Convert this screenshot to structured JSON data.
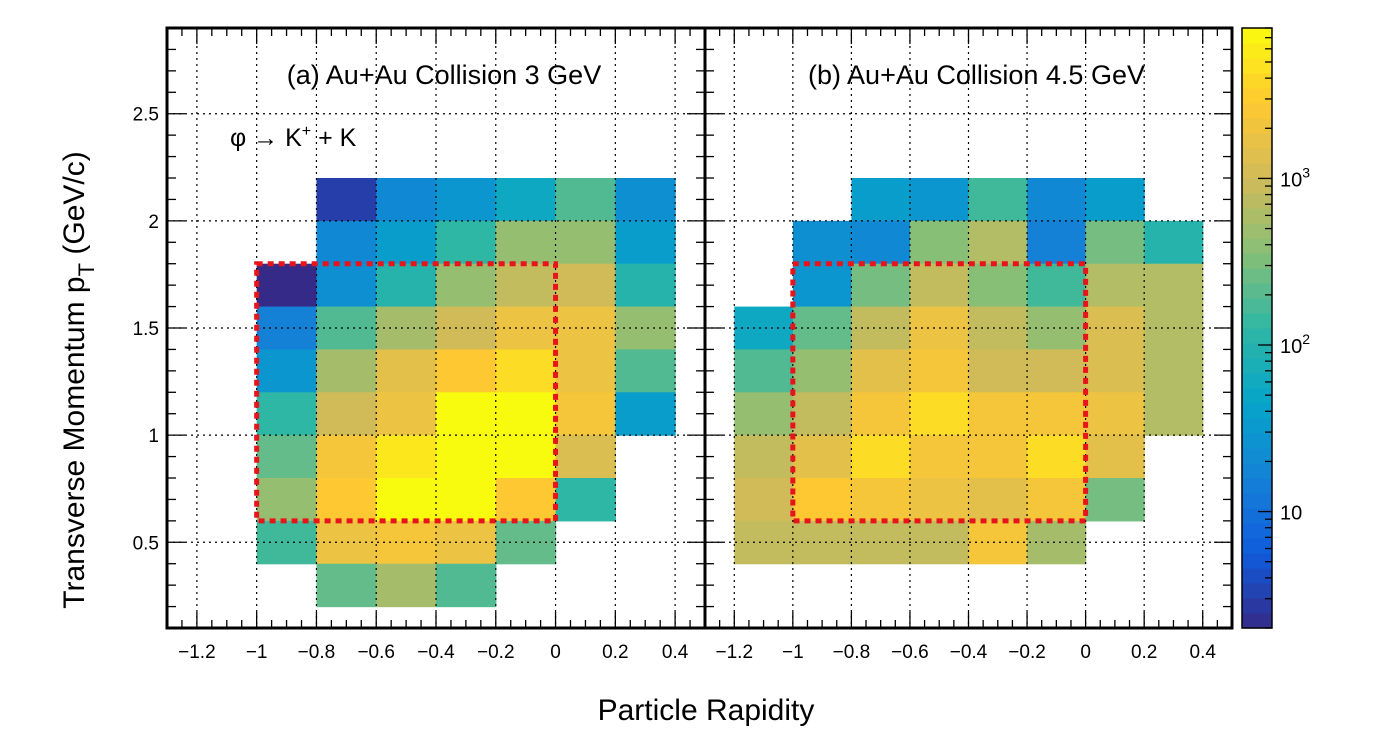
{
  "figure": {
    "ylabel_main": "Transverse Momentum p",
    "ylabel_sub": "T",
    "ylabel_unit": " (GeV/c)",
    "xlabel": "Particle Rapidity"
  },
  "annotation": {
    "pre": "φ → K",
    "sup": "+",
    "post": " + K"
  },
  "chart_data": [
    {
      "type": "heatmap",
      "title": "(a) Au+Au Collision 3 GeV",
      "xlabel": "Particle Rapidity",
      "ylabel": "Transverse Momentum p_T (GeV/c)",
      "xlim": [
        -1.3,
        0.5
      ],
      "ylim": [
        0.1,
        2.9
      ],
      "xticks": [
        -1.2,
        -1,
        -0.8,
        -0.6,
        -0.4,
        -0.2,
        0,
        0.2,
        0.4
      ],
      "xtick_labels": [
        "−1.2",
        "−1",
        "−0.8",
        "−0.6",
        "−0.4",
        "−0.2",
        "0",
        "0.2",
        "0.4"
      ],
      "yticks": [
        0.5,
        1,
        1.5,
        2,
        2.5
      ],
      "ytick_labels": [
        "0.5",
        "1",
        "1.5",
        "2",
        "2.5"
      ],
      "grid": true,
      "log_z": true,
      "bin_width": [
        0.2,
        0.2
      ],
      "cells": [
        [
          -0.8,
          2.0,
          3
        ],
        [
          -0.6,
          2.0,
          20
        ],
        [
          -0.4,
          2.0,
          30
        ],
        [
          -0.2,
          2.0,
          50
        ],
        [
          0.0,
          2.0,
          200
        ],
        [
          0.2,
          2.0,
          25
        ],
        [
          -0.8,
          1.8,
          20
        ],
        [
          -0.6,
          1.8,
          35
        ],
        [
          -0.4,
          1.8,
          120
        ],
        [
          -0.2,
          1.8,
          400
        ],
        [
          0.0,
          1.8,
          400
        ],
        [
          0.2,
          1.8,
          35
        ],
        [
          -1.0,
          1.6,
          2
        ],
        [
          -0.8,
          1.6,
          25
        ],
        [
          -0.6,
          1.6,
          100
        ],
        [
          -0.4,
          1.6,
          400
        ],
        [
          -0.2,
          1.6,
          800
        ],
        [
          0.0,
          1.6,
          1000
        ],
        [
          0.2,
          1.6,
          100
        ],
        [
          -1.0,
          1.4,
          15
        ],
        [
          -0.8,
          1.4,
          200
        ],
        [
          -0.6,
          1.4,
          500
        ],
        [
          -0.4,
          1.4,
          1000
        ],
        [
          -0.2,
          1.4,
          2000
        ],
        [
          0.0,
          1.4,
          2000
        ],
        [
          0.2,
          1.4,
          400
        ],
        [
          -1.0,
          1.2,
          30
        ],
        [
          -0.8,
          1.2,
          500
        ],
        [
          -0.6,
          1.2,
          1500
        ],
        [
          -0.4,
          1.2,
          3000
        ],
        [
          -0.2,
          1.2,
          4000
        ],
        [
          0.0,
          1.2,
          2000
        ],
        [
          0.2,
          1.2,
          200
        ],
        [
          -1.0,
          1.0,
          120
        ],
        [
          -0.8,
          1.0,
          1000
        ],
        [
          -0.6,
          1.0,
          2000
        ],
        [
          -0.4,
          1.0,
          8000
        ],
        [
          -0.2,
          1.0,
          8000
        ],
        [
          0.0,
          1.0,
          2500
        ],
        [
          0.2,
          1.0,
          40
        ],
        [
          -1.0,
          0.8,
          250
        ],
        [
          -0.8,
          0.8,
          2500
        ],
        [
          -0.6,
          0.8,
          5000
        ],
        [
          -0.4,
          0.8,
          8000
        ],
        [
          -0.2,
          0.8,
          8000
        ],
        [
          0.0,
          0.8,
          1200
        ],
        [
          -1.0,
          0.6,
          400
        ],
        [
          -0.8,
          0.6,
          3000
        ],
        [
          -0.6,
          0.6,
          8000
        ],
        [
          -0.4,
          0.6,
          8000
        ],
        [
          -0.2,
          0.6,
          3000
        ],
        [
          0.0,
          0.6,
          120
        ],
        [
          -1.0,
          0.4,
          150
        ],
        [
          -0.8,
          0.4,
          2000
        ],
        [
          -0.6,
          0.4,
          2500
        ],
        [
          -0.4,
          0.4,
          2000
        ],
        [
          -0.2,
          0.4,
          250
        ],
        [
          -0.8,
          0.2,
          250
        ],
        [
          -0.6,
          0.2,
          500
        ],
        [
          -0.4,
          0.2,
          180
        ]
      ],
      "highlight_box": {
        "x": [
          -1.0,
          0.0
        ],
        "y": [
          0.6,
          1.8
        ],
        "color": "#e8141b"
      }
    },
    {
      "type": "heatmap",
      "title": "(b) Au+Au Collision 4.5 GeV",
      "xlabel": "Particle Rapidity",
      "ylabel": "Transverse Momentum p_T (GeV/c)",
      "xlim": [
        -1.3,
        0.5
      ],
      "ylim": [
        0.1,
        2.9
      ],
      "xticks": [
        -1.2,
        -1,
        -0.8,
        -0.6,
        -0.4,
        -0.2,
        0,
        0.2,
        0.4
      ],
      "xtick_labels": [
        "−1.2",
        "−1",
        "−0.8",
        "−0.6",
        "−0.4",
        "−0.2",
        "0",
        "0.2",
        "0.4"
      ],
      "yticks": [
        0.5,
        1,
        1.5,
        2,
        2.5
      ],
      "grid": true,
      "log_z": true,
      "bin_width": [
        0.2,
        0.2
      ],
      "cells": [
        [
          -0.8,
          2.0,
          40
        ],
        [
          -0.6,
          2.0,
          30
        ],
        [
          -0.4,
          2.0,
          150
        ],
        [
          -0.2,
          2.0,
          20
        ],
        [
          0.0,
          2.0,
          40
        ],
        [
          -1.0,
          1.8,
          25
        ],
        [
          -0.8,
          1.8,
          20
        ],
        [
          -0.6,
          1.8,
          350
        ],
        [
          -0.4,
          1.8,
          600
        ],
        [
          -0.2,
          1.8,
          15
        ],
        [
          0.0,
          1.8,
          300
        ],
        [
          0.2,
          1.8,
          100
        ],
        [
          -1.0,
          1.6,
          30
        ],
        [
          -0.8,
          1.6,
          300
        ],
        [
          -0.6,
          1.6,
          800
        ],
        [
          -0.4,
          1.6,
          350
        ],
        [
          -0.2,
          1.6,
          150
        ],
        [
          0.0,
          1.6,
          700
        ],
        [
          0.2,
          1.6,
          600
        ],
        [
          -1.2,
          1.4,
          50
        ],
        [
          -1.0,
          1.4,
          250
        ],
        [
          -0.8,
          1.4,
          800
        ],
        [
          -0.6,
          1.4,
          2000
        ],
        [
          -0.4,
          1.4,
          900
        ],
        [
          -0.2,
          1.4,
          400
        ],
        [
          0.0,
          1.4,
          1200
        ],
        [
          0.2,
          1.4,
          600
        ],
        [
          -1.2,
          1.2,
          200
        ],
        [
          -1.0,
          1.2,
          400
        ],
        [
          -0.8,
          1.2,
          1500
        ],
        [
          -0.6,
          1.2,
          2500
        ],
        [
          -0.4,
          1.2,
          1000
        ],
        [
          -0.2,
          1.2,
          1000
        ],
        [
          0.0,
          1.2,
          1200
        ],
        [
          0.2,
          1.2,
          600
        ],
        [
          -1.2,
          1.0,
          400
        ],
        [
          -1.0,
          1.0,
          800
        ],
        [
          -0.8,
          1.0,
          2500
        ],
        [
          -0.6,
          1.0,
          4000
        ],
        [
          -0.4,
          1.0,
          2500
        ],
        [
          -0.2,
          1.0,
          2500
        ],
        [
          0.0,
          1.0,
          2000
        ],
        [
          0.2,
          1.0,
          600
        ],
        [
          -1.2,
          0.8,
          800
        ],
        [
          -1.0,
          0.8,
          1500
        ],
        [
          -0.8,
          0.8,
          4000
        ],
        [
          -0.6,
          0.8,
          2500
        ],
        [
          -0.4,
          0.8,
          2500
        ],
        [
          -0.2,
          0.8,
          4000
        ],
        [
          0.0,
          0.8,
          1500
        ],
        [
          -1.2,
          0.6,
          1000
        ],
        [
          -1.0,
          0.6,
          3000
        ],
        [
          -0.8,
          0.6,
          2500
        ],
        [
          -0.6,
          0.6,
          2000
        ],
        [
          -0.4,
          0.6,
          1500
        ],
        [
          -0.2,
          0.6,
          2500
        ],
        [
          0.0,
          0.6,
          300
        ],
        [
          -1.2,
          0.4,
          800
        ],
        [
          -1.0,
          0.4,
          800
        ],
        [
          -0.8,
          0.4,
          800
        ],
        [
          -0.6,
          0.4,
          800
        ],
        [
          -0.4,
          0.4,
          2500
        ],
        [
          -0.2,
          0.4,
          500
        ]
      ],
      "highlight_box": {
        "x": [
          -1.0,
          0.0
        ],
        "y": [
          0.6,
          1.8
        ],
        "color": "#e8141b"
      }
    }
  ],
  "colorbar": {
    "scale": "log",
    "min": 2,
    "max": 8000,
    "labels": [
      {
        "value": 10,
        "base": "10",
        "exp": ""
      },
      {
        "value": 100,
        "base": "10",
        "exp": "2"
      },
      {
        "value": 1000,
        "base": "10",
        "exp": "3"
      }
    ],
    "palette": [
      "#352a87",
      "#0f5cdd",
      "#1481d6",
      "#06a4ca",
      "#2eb7a4",
      "#87bf77",
      "#d1bb59",
      "#fec832",
      "#f9fb0e"
    ]
  }
}
